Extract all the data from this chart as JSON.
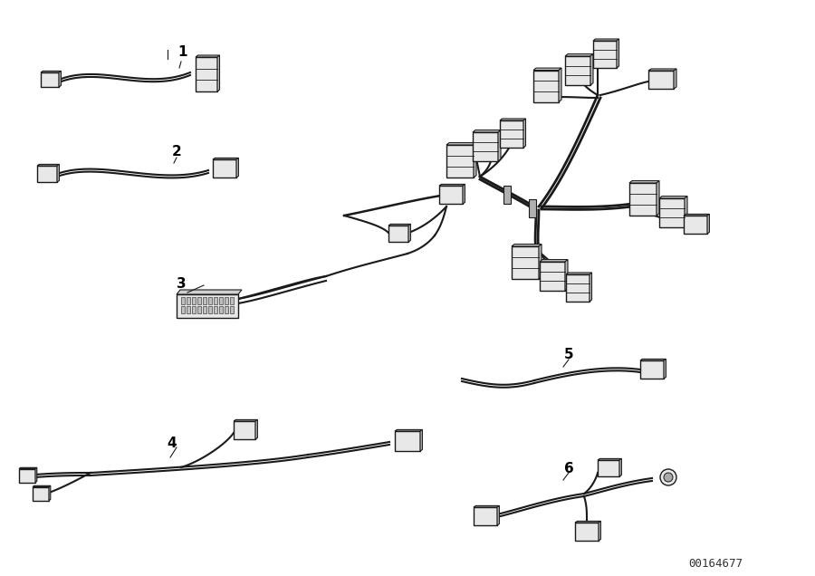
{
  "bg_color": "#ffffff",
  "line_color": "#1a1a1a",
  "connector_fill": "#e8e8e8",
  "connector_edge": "#1a1a1a",
  "label_color": "#000000",
  "part_number": "00164677",
  "figsize": [
    9.0,
    6.36
  ],
  "dpi": 100
}
